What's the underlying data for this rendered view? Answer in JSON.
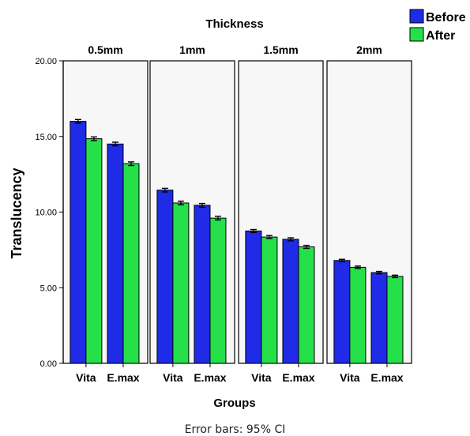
{
  "chart_data": {
    "type": "bar",
    "title": "",
    "panel_title": "Thickness",
    "panels": [
      "0.5mm",
      "1mm",
      "1.5mm",
      "2mm"
    ],
    "categories": [
      "Vita",
      "E.max"
    ],
    "xlabel": "Groups",
    "ylabel": "Translucency",
    "ylim": [
      0,
      20
    ],
    "yticks": [
      "0.00",
      "5.00",
      "10.00",
      "15.00",
      "20.00"
    ],
    "legend_position": "top-right",
    "error_bar_note": "Error bars: 95% CI",
    "series": [
      {
        "name": "Before",
        "color": "#1f2be6",
        "values": [
          [
            16.0,
            14.5
          ],
          [
            11.45,
            10.45
          ],
          [
            8.75,
            8.2
          ],
          [
            6.8,
            6.0
          ]
        ],
        "errors": [
          0.12,
          0.12,
          0.1,
          0.08
        ]
      },
      {
        "name": "After",
        "color": "#26e04a",
        "values": [
          [
            14.85,
            13.2
          ],
          [
            10.6,
            9.6
          ],
          [
            8.35,
            7.7
          ],
          [
            6.35,
            5.75
          ]
        ],
        "errors": [
          0.12,
          0.12,
          0.1,
          0.08
        ]
      }
    ]
  }
}
